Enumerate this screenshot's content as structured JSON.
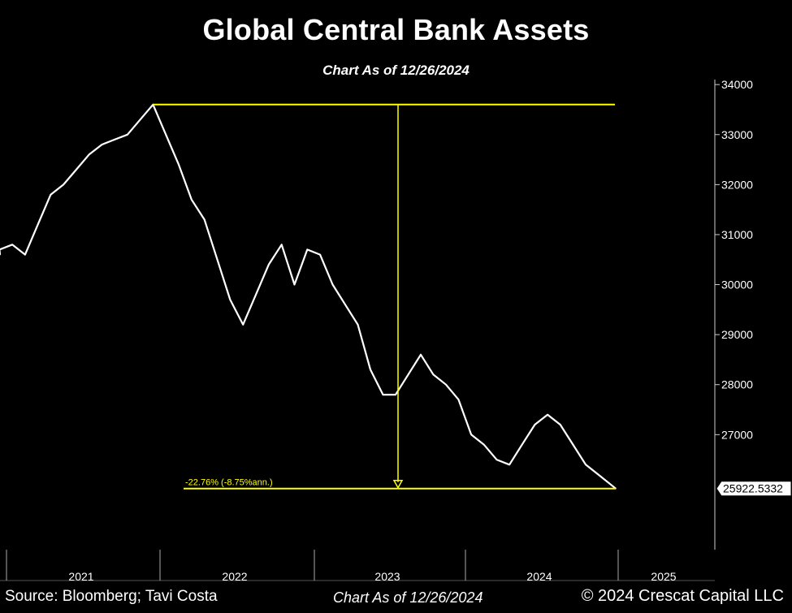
{
  "title": "Global Central Bank Assets",
  "subtitle": "Chart As of 12/26/2024",
  "footer": {
    "source": "Source: Bloomberg; Tavi Costa",
    "as_of": "Chart As of 12/26/2024",
    "copyright": "© 2024 Crescat Capital LLC"
  },
  "colors": {
    "background": "#000000",
    "line": "#ffffff",
    "annotation": "#ffff00"
  },
  "chart_data": {
    "type": "line",
    "title": "Global Central Bank Assets",
    "subtitle": "Chart As of 12/26/2024",
    "xlabel": "",
    "ylabel": "",
    "x_ticks": [
      "2021",
      "2022",
      "2023",
      "2024",
      "2025"
    ],
    "y_ticks": [
      27000,
      28000,
      29000,
      30000,
      31000,
      32000,
      33000,
      34000
    ],
    "ylim": [
      24700,
      34100
    ],
    "grid": false,
    "last_value_label": "25922.5332",
    "annotation": "-22.76% (-8.75%ann.)",
    "series": [
      {
        "x": [
          "2020-11",
          "2020-12",
          "2021-01",
          "2021-02",
          "2021-03",
          "2021-04",
          "2021-05",
          "2021-06",
          "2021-07",
          "2021-08",
          "2021-09",
          "2021-10",
          "2021-11",
          "2021-12",
          "2022-01",
          "2022-02",
          "2022-03",
          "2022-04",
          "2022-05",
          "2022-06",
          "2022-07",
          "2022-08",
          "2022-09",
          "2022-10",
          "2022-11",
          "2022-12",
          "2023-01",
          "2023-02",
          "2023-03",
          "2023-04",
          "2023-05",
          "2023-06",
          "2023-07",
          "2023-08",
          "2023-09",
          "2023-10",
          "2023-11",
          "2023-12",
          "2024-01",
          "2024-02",
          "2024-03",
          "2024-04",
          "2024-05",
          "2024-06",
          "2024-07",
          "2024-08",
          "2024-09",
          "2024-10",
          "2024-11",
          "2024-12-26"
        ],
        "values": [
          30600,
          30700,
          30800,
          30600,
          31200,
          31800,
          32000,
          32300,
          32600,
          32800,
          32900,
          33000,
          33300,
          33600,
          33000,
          32400,
          31700,
          31300,
          30500,
          29700,
          29200,
          29800,
          30400,
          30800,
          30000,
          30700,
          30600,
          30000,
          29600,
          29200,
          28300,
          27800,
          27800,
          28200,
          28600,
          28200,
          28000,
          27700,
          27000,
          26800,
          26500,
          26400,
          26800,
          27200,
          27400,
          27200,
          26800,
          26400,
          26200,
          25922.5332
        ]
      }
    ]
  }
}
